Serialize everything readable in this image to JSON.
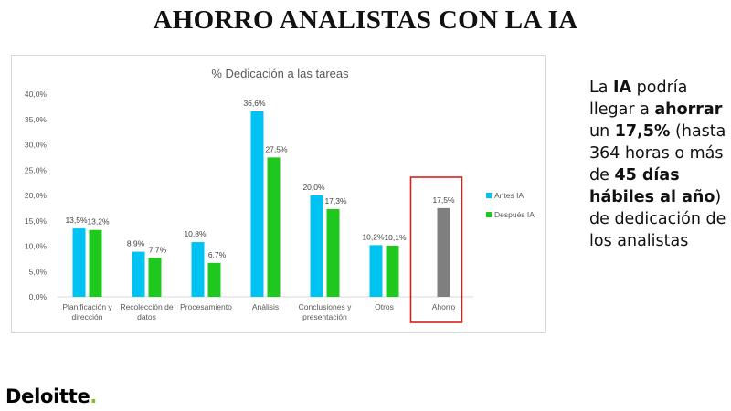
{
  "header": {
    "title": "AHORRO ANALISTAS CON LA IA"
  },
  "chart_data": {
    "type": "bar",
    "title": "% Dedicación a las tareas",
    "categories": [
      "Planificación y dirección",
      "Recolección de datos",
      "Procesamiento",
      "Análisis",
      "Conclusiones y presentación",
      "Otros",
      "Ahorro"
    ],
    "category_lines": [
      [
        "Planificación y",
        "dirección"
      ],
      [
        "Recolección de",
        "datos"
      ],
      [
        "Procesamiento"
      ],
      [
        "Análisis"
      ],
      [
        "Conclusiones y",
        "presentación"
      ],
      [
        "Otros"
      ],
      [
        "Ahorro"
      ]
    ],
    "series": [
      {
        "name": "Antes IA",
        "color": "#00c3f4",
        "values": [
          13.5,
          8.9,
          10.8,
          36.6,
          20.0,
          10.2,
          null
        ],
        "labels": [
          "13,5%",
          "8,9%",
          "10,8%",
          "36,6%",
          "20,0%",
          "10,2%",
          ""
        ]
      },
      {
        "name": "Después IA",
        "color": "#1fc81f",
        "values": [
          13.2,
          7.7,
          6.7,
          27.5,
          17.3,
          10.1,
          null
        ],
        "labels": [
          "13,2%",
          "7,7%",
          "6,7%",
          "27,5%",
          "17,3%",
          "10,1%",
          ""
        ]
      },
      {
        "name": "",
        "color": "#7f7f7f",
        "values": [
          null,
          null,
          null,
          null,
          null,
          null,
          17.5
        ],
        "labels": [
          "",
          "",
          "",
          "",
          "",
          "",
          "17,5%"
        ]
      }
    ],
    "ylim": [
      0,
      40
    ],
    "yticks": [
      "0,0%",
      "5,0%",
      "10,0%",
      "15,0%",
      "20,0%",
      "25,0%",
      "30,0%",
      "35,0%",
      "40,0%"
    ],
    "grid": false,
    "legend": "right",
    "highlight": {
      "category": "Ahorro",
      "color": "#d9201b"
    }
  },
  "side_text": {
    "p1": "La ",
    "b1": "IA",
    "p2": " podría llegar a ",
    "b2": "ahorrar",
    "p3": " un ",
    "b3": "17,5%",
    "p4": " (hasta 364 horas o más de ",
    "b4": "45 días hábiles al año",
    "p5": ") de dedicación de los analistas"
  },
  "brand": {
    "name": "Deloitte",
    "dot": ".",
    "accent": "#86bc25"
  }
}
